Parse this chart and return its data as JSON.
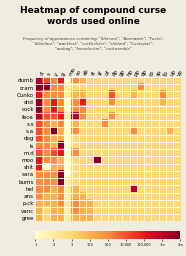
{
  "title": "Heatmap of compound curse\nwords used online",
  "subtitle": "Frequency of appearances containing: \"Shitcock\", \"Assmaster\", \"Fucks\",\n\"dildoface\", \"wankfest\", \"cockholster\", \"shitlord\", \"Cuntsplat\",\n\"assbag\", \"horsefucker\", \"cockwomble\"",
  "row_labels": [
    "dumb",
    "cram",
    "Cunko",
    "shd",
    "cock",
    "fece",
    "s.s",
    "s.a",
    "dog",
    "ls",
    "m.d",
    "moo",
    "shit",
    "sara",
    "bums",
    "hel",
    "ans",
    "p.ck",
    "vanc",
    "gree"
  ],
  "col_labels": [
    "d",
    "s",
    "y",
    "g",
    "mo",
    "so",
    "ab",
    "st",
    "sf",
    "of",
    "dp",
    "gp",
    "hp",
    "pp",
    "qp",
    "rp",
    "sp",
    "tp",
    "up",
    "vp"
  ],
  "data": [
    [
      8,
      6,
      5,
      7,
      1,
      5,
      4,
      3,
      3,
      3,
      3,
      3,
      3,
      3,
      3,
      3,
      3,
      3,
      3,
      3
    ],
    [
      9,
      9,
      5,
      5,
      2,
      3,
      3,
      3,
      3,
      3,
      3,
      3,
      3,
      3,
      5,
      3,
      3,
      3,
      3,
      3
    ],
    [
      7,
      5,
      5,
      5,
      2,
      4,
      4,
      3,
      3,
      3,
      6,
      3,
      3,
      4,
      3,
      3,
      3,
      5,
      3,
      3
    ],
    [
      9,
      5,
      7,
      5,
      1,
      5,
      7,
      3,
      3,
      3,
      5,
      3,
      3,
      3,
      3,
      3,
      3,
      4,
      3,
      3
    ],
    [
      9,
      5,
      7,
      5,
      1,
      5,
      5,
      3,
      3,
      3,
      3,
      3,
      3,
      3,
      3,
      3,
      3,
      3,
      3,
      3
    ],
    [
      8,
      6,
      6,
      7,
      2,
      8,
      5,
      3,
      3,
      3,
      5,
      3,
      3,
      3,
      3,
      3,
      3,
      3,
      3,
      3
    ],
    [
      6,
      5,
      4,
      5,
      1,
      4,
      3,
      3,
      3,
      5,
      3,
      3,
      3,
      3,
      3,
      3,
      3,
      3,
      3,
      3
    ],
    [
      6,
      5,
      9,
      4,
      1,
      5,
      3,
      3,
      3,
      3,
      3,
      3,
      3,
      5,
      3,
      3,
      3,
      3,
      4,
      3
    ],
    [
      6,
      5,
      4,
      4,
      1,
      3,
      3,
      3,
      3,
      3,
      3,
      3,
      3,
      3,
      3,
      3,
      3,
      3,
      3,
      3
    ],
    [
      5,
      5,
      4,
      9,
      1,
      3,
      3,
      3,
      3,
      3,
      3,
      3,
      3,
      3,
      3,
      3,
      3,
      3,
      3,
      3
    ],
    [
      6,
      5,
      6,
      7,
      1,
      5,
      3,
      3,
      3,
      3,
      3,
      3,
      3,
      3,
      3,
      3,
      3,
      3,
      3,
      3
    ],
    [
      7,
      5,
      5,
      4,
      1,
      3,
      3,
      3,
      9,
      3,
      3,
      3,
      3,
      3,
      3,
      3,
      3,
      3,
      3,
      3
    ],
    [
      7,
      1,
      4,
      4,
      1,
      3,
      3,
      3,
      3,
      3,
      3,
      3,
      3,
      3,
      3,
      3,
      3,
      3,
      3,
      3
    ],
    [
      5,
      5,
      5,
      9,
      1,
      3,
      3,
      3,
      3,
      3,
      3,
      3,
      3,
      3,
      3,
      3,
      3,
      3,
      3,
      3
    ],
    [
      5,
      5,
      5,
      9,
      2,
      3,
      3,
      3,
      3,
      3,
      3,
      3,
      3,
      3,
      3,
      3,
      3,
      3,
      3,
      3
    ],
    [
      5,
      5,
      4,
      5,
      2,
      4,
      3,
      3,
      3,
      3,
      3,
      3,
      3,
      8,
      3,
      3,
      3,
      3,
      3,
      3
    ],
    [
      5,
      4,
      4,
      5,
      2,
      4,
      4,
      3,
      3,
      3,
      3,
      3,
      3,
      3,
      3,
      3,
      3,
      3,
      3,
      3
    ],
    [
      4,
      4,
      4,
      5,
      2,
      5,
      4,
      4,
      3,
      3,
      3,
      3,
      3,
      3,
      3,
      3,
      3,
      3,
      3,
      3
    ],
    [
      4,
      3,
      4,
      4,
      2,
      5,
      4,
      4,
      3,
      3,
      3,
      3,
      3,
      3,
      3,
      3,
      3,
      3,
      3,
      3
    ],
    [
      4,
      3,
      4,
      4,
      2,
      4,
      4,
      4,
      3,
      3,
      3,
      3,
      3,
      3,
      3,
      3,
      3,
      3,
      3,
      3
    ]
  ],
  "vmin": 1,
  "vmax": 9,
  "colormap": "YlOrRd",
  "background_color": "#f0ece0",
  "title_fontsize": 6.5,
  "label_fontsize": 4.0,
  "subtitle_fontsize": 2.8,
  "colorbar_tick_labels": [
    "1",
    "2",
    "3",
    "100",
    "500",
    "10,000",
    "100,000",
    "1m",
    "2m"
  ]
}
